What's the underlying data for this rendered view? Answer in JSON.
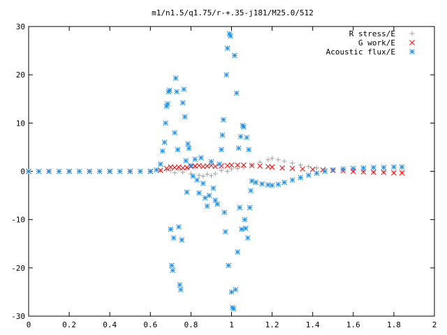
{
  "chart_data": {
    "type": "scatter",
    "title": "m1/n1.5/q1.75/r-+.35-j181/M25.0/512",
    "xlabel": "",
    "ylabel": "",
    "xlim": [
      0,
      2
    ],
    "ylim": [
      -30,
      30
    ],
    "x_ticks": [
      "0",
      "0.2",
      "0.4",
      "0.6",
      "0.8",
      "1",
      "1.2",
      "1.4",
      "1.6",
      "1.8",
      "2"
    ],
    "x_tick_values": [
      0,
      0.2,
      0.4,
      0.6,
      0.8,
      1.0,
      1.2,
      1.4,
      1.6,
      1.8,
      2.0
    ],
    "y_ticks": [
      "30",
      "20",
      "10",
      "0",
      "-10",
      "-20",
      "-30"
    ],
    "y_tick_values": [
      30,
      20,
      10,
      0,
      -10,
      -20,
      -30
    ],
    "grid": false,
    "legend_position": "top-right",
    "series": [
      {
        "name": "R stress/E",
        "marker": "plus",
        "color": "#a0a0a0",
        "points": [
          [
            0.0,
            0
          ],
          [
            0.1,
            0
          ],
          [
            0.2,
            0
          ],
          [
            0.3,
            0
          ],
          [
            0.4,
            0
          ],
          [
            0.5,
            0
          ],
          [
            0.6,
            0
          ],
          [
            0.65,
            0.1
          ],
          [
            0.68,
            0.3
          ],
          [
            0.7,
            0.2
          ],
          [
            0.72,
            -0.3
          ],
          [
            0.74,
            0.4
          ],
          [
            0.76,
            -0.2
          ],
          [
            0.78,
            0.5
          ],
          [
            0.8,
            -0.5
          ],
          [
            0.82,
            0.8
          ],
          [
            0.84,
            -0.8
          ],
          [
            0.86,
            -1.0
          ],
          [
            0.88,
            -0.6
          ],
          [
            0.9,
            -0.9
          ],
          [
            0.92,
            -0.5
          ],
          [
            0.95,
            0.2
          ],
          [
            0.98,
            0.0
          ],
          [
            1.0,
            0.5
          ],
          [
            1.03,
            0.6
          ],
          [
            1.06,
            0.8
          ],
          [
            1.1,
            1.3
          ],
          [
            1.14,
            1.9
          ],
          [
            1.18,
            2.4
          ],
          [
            1.2,
            2.7
          ],
          [
            1.23,
            2.4
          ],
          [
            1.26,
            2.1
          ],
          [
            1.3,
            1.7
          ],
          [
            1.34,
            1.3
          ],
          [
            1.38,
            1.0
          ],
          [
            1.42,
            0.7
          ],
          [
            1.46,
            0.5
          ],
          [
            1.5,
            0.3
          ],
          [
            1.55,
            0.2
          ],
          [
            1.6,
            0.1
          ],
          [
            1.65,
            0.0
          ],
          [
            1.7,
            -0.1
          ],
          [
            1.75,
            -0.1
          ],
          [
            1.8,
            -0.2
          ],
          [
            1.84,
            -0.2
          ]
        ]
      },
      {
        "name": "G work/E",
        "marker": "cross",
        "color": "#ff0000",
        "points": [
          [
            0.0,
            0
          ],
          [
            0.1,
            0
          ],
          [
            0.2,
            0
          ],
          [
            0.3,
            0
          ],
          [
            0.4,
            0
          ],
          [
            0.5,
            0
          ],
          [
            0.6,
            0
          ],
          [
            0.65,
            0.2
          ],
          [
            0.68,
            0.6
          ],
          [
            0.7,
            0.9
          ],
          [
            0.72,
            0.8
          ],
          [
            0.74,
            0.9
          ],
          [
            0.76,
            0.7
          ],
          [
            0.78,
            0.8
          ],
          [
            0.8,
            1.0
          ],
          [
            0.82,
            1.1
          ],
          [
            0.84,
            1.2
          ],
          [
            0.86,
            1.0
          ],
          [
            0.88,
            1.1
          ],
          [
            0.9,
            1.2
          ],
          [
            0.92,
            1.0
          ],
          [
            0.95,
            1.1
          ],
          [
            0.98,
            1.2
          ],
          [
            1.0,
            1.3
          ],
          [
            1.03,
            1.3
          ],
          [
            1.06,
            1.3
          ],
          [
            1.1,
            1.2
          ],
          [
            1.14,
            1.1
          ],
          [
            1.18,
            1.0
          ],
          [
            1.2,
            0.9
          ],
          [
            1.25,
            0.7
          ],
          [
            1.3,
            0.6
          ],
          [
            1.35,
            0.5
          ],
          [
            1.4,
            0.4
          ],
          [
            1.45,
            0.3
          ],
          [
            1.5,
            0.2
          ],
          [
            1.55,
            0.1
          ],
          [
            1.6,
            0.0
          ],
          [
            1.65,
            -0.1
          ],
          [
            1.7,
            -0.2
          ],
          [
            1.75,
            -0.2
          ],
          [
            1.8,
            -0.3
          ],
          [
            1.84,
            -0.3
          ]
        ]
      },
      {
        "name": "Acoustic flux/E",
        "marker": "star",
        "color": "#1e90e8",
        "points": [
          [
            0.0,
            0
          ],
          [
            0.05,
            0
          ],
          [
            0.1,
            0
          ],
          [
            0.15,
            0
          ],
          [
            0.2,
            0
          ],
          [
            0.25,
            0
          ],
          [
            0.3,
            0
          ],
          [
            0.35,
            0
          ],
          [
            0.4,
            0
          ],
          [
            0.45,
            0
          ],
          [
            0.5,
            0
          ],
          [
            0.55,
            0
          ],
          [
            0.6,
            0
          ],
          [
            0.63,
            0.3
          ],
          [
            0.65,
            1.5
          ],
          [
            0.66,
            4.2
          ],
          [
            0.67,
            6.0
          ],
          [
            0.675,
            10.0
          ],
          [
            0.68,
            13.5
          ],
          [
            0.685,
            14.0
          ],
          [
            0.69,
            16.5
          ],
          [
            0.695,
            16.8
          ],
          [
            0.7,
            -12.0
          ],
          [
            0.705,
            -19.5
          ],
          [
            0.71,
            -20.5
          ],
          [
            0.715,
            -13.8
          ],
          [
            0.72,
            8.0
          ],
          [
            0.725,
            19.3
          ],
          [
            0.73,
            16.5
          ],
          [
            0.735,
            4.5
          ],
          [
            0.74,
            -11.5
          ],
          [
            0.745,
            -23.5
          ],
          [
            0.75,
            -24.5
          ],
          [
            0.755,
            -14.2
          ],
          [
            0.76,
            14.2
          ],
          [
            0.765,
            17.0
          ],
          [
            0.77,
            11.3
          ],
          [
            0.775,
            2.2
          ],
          [
            0.78,
            -4.3
          ],
          [
            0.785,
            5.7
          ],
          [
            0.79,
            4.8
          ],
          [
            0.8,
            1.2
          ],
          [
            0.81,
            -1.0
          ],
          [
            0.82,
            2.5
          ],
          [
            0.83,
            -1.8
          ],
          [
            0.84,
            -4.5
          ],
          [
            0.85,
            2.8
          ],
          [
            0.86,
            -2.5
          ],
          [
            0.87,
            -5.5
          ],
          [
            0.88,
            -7.2
          ],
          [
            0.89,
            -5.0
          ],
          [
            0.9,
            2.0
          ],
          [
            0.91,
            -3.5
          ],
          [
            0.92,
            -6.0
          ],
          [
            0.93,
            -6.8
          ],
          [
            0.94,
            1.5
          ],
          [
            0.95,
            4.5
          ],
          [
            0.955,
            7.5
          ],
          [
            0.96,
            10.7
          ],
          [
            0.965,
            -8.5
          ],
          [
            0.97,
            -12.5
          ],
          [
            0.975,
            20.0
          ],
          [
            0.98,
            25.5
          ],
          [
            0.985,
            -19.5
          ],
          [
            0.99,
            28.5
          ],
          [
            0.995,
            28.0
          ],
          [
            1.0,
            -25.0
          ],
          [
            1.005,
            -28.2
          ],
          [
            1.01,
            -28.5
          ],
          [
            1.015,
            24.0
          ],
          [
            1.02,
            -24.5
          ],
          [
            1.025,
            16.2
          ],
          [
            1.03,
            -16.7
          ],
          [
            1.035,
            4.8
          ],
          [
            1.04,
            -7.5
          ],
          [
            1.045,
            7.2
          ],
          [
            1.05,
            -12.0
          ],
          [
            1.055,
            9.5
          ],
          [
            1.06,
            9.2
          ],
          [
            1.065,
            -10.0
          ],
          [
            1.07,
            -11.8
          ],
          [
            1.075,
            7.0
          ],
          [
            1.08,
            -13.8
          ],
          [
            1.085,
            4.5
          ],
          [
            1.09,
            -7.5
          ],
          [
            1.095,
            -4.0
          ],
          [
            1.1,
            -2.0
          ],
          [
            1.12,
            -2.3
          ],
          [
            1.15,
            -2.6
          ],
          [
            1.18,
            -2.8
          ],
          [
            1.2,
            -2.9
          ],
          [
            1.23,
            -2.7
          ],
          [
            1.26,
            -2.3
          ],
          [
            1.3,
            -1.8
          ],
          [
            1.34,
            -1.3
          ],
          [
            1.38,
            -0.8
          ],
          [
            1.42,
            -0.4
          ],
          [
            1.46,
            0.0
          ],
          [
            1.5,
            0.3
          ],
          [
            1.55,
            0.5
          ],
          [
            1.6,
            0.6
          ],
          [
            1.65,
            0.7
          ],
          [
            1.7,
            0.8
          ],
          [
            1.75,
            0.8
          ],
          [
            1.8,
            0.9
          ],
          [
            1.84,
            0.9
          ]
        ]
      }
    ]
  }
}
